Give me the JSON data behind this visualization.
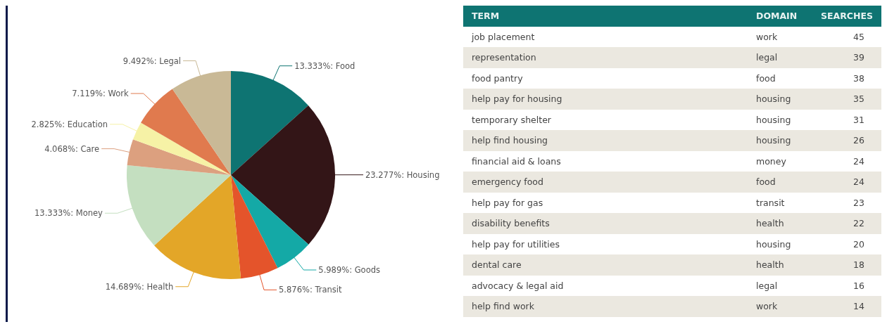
{
  "chart_data": [
    {
      "type": "pie",
      "categories": [
        "Food",
        "Housing",
        "Goods",
        "Transit",
        "Health",
        "Money",
        "Care",
        "Education",
        "Work",
        "Legal"
      ],
      "values": [
        13.333,
        23.277,
        5.989,
        5.876,
        14.689,
        13.333,
        4.068,
        2.825,
        7.119,
        9.492
      ],
      "colors": [
        "#0e7472",
        "#331517",
        "#14a9a6",
        "#e4542b",
        "#e3a628",
        "#c4dfc0",
        "#dca07f",
        "#f6f2a6",
        "#e07a4e",
        "#c9b996"
      ],
      "value_labels": [
        "13.333%:",
        "23.277%:",
        "5.989%:",
        "5.876%:",
        "14.689%:",
        "13.333%:",
        "4.068%:",
        "2.825%:",
        "7.119%:",
        "9.492%:"
      ]
    },
    {
      "type": "other",
      "annotations": [
        "TERM",
        "DOMAIN",
        "SEARCHES"
      ],
      "categories": [
        "job placement",
        "representation",
        "food pantry",
        "help pay for housing",
        "temporary shelter",
        "help find housing",
        "financial aid & loans",
        "emergency food",
        "help pay for gas",
        "disability benefits",
        "help pay for utilities",
        "dental care",
        "advocacy & legal aid",
        "help find work"
      ],
      "y2_categories": [
        "work",
        "legal",
        "food",
        "housing",
        "housing",
        "housing",
        "money",
        "food",
        "transit",
        "health",
        "housing",
        "health",
        "legal",
        "work"
      ],
      "values": [
        45,
        39,
        38,
        35,
        31,
        26,
        24,
        24,
        23,
        22,
        20,
        18,
        16,
        14
      ],
      "data_labels": true
    }
  ]
}
